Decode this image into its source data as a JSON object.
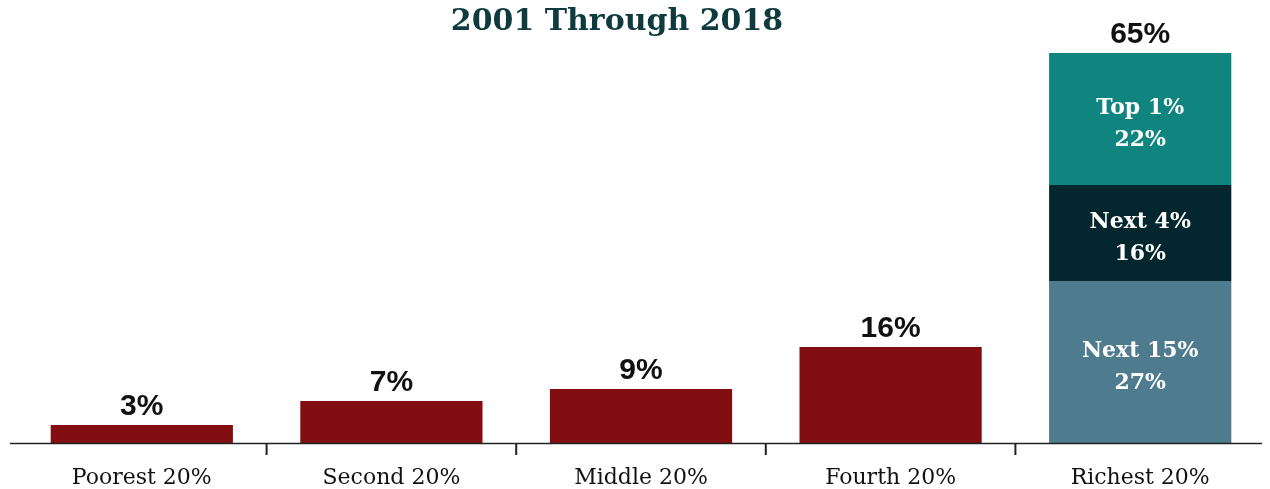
{
  "chart_data": {
    "type": "bar",
    "title": "2001 Through 2018",
    "stacked": true,
    "categories": [
      "Poorest 20%",
      "Second 20%",
      "Middle 20%",
      "Fourth 20%",
      "Richest 20%"
    ],
    "series": [
      {
        "color": "#820e12",
        "values": [
          3,
          7,
          9,
          16,
          null
        ]
      },
      {
        "name": "Next 15%",
        "color": "#4f7b8f",
        "values": [
          null,
          null,
          null,
          null,
          27
        ],
        "value_labels": [
          null,
          null,
          null,
          null,
          "27%"
        ]
      },
      {
        "name": "Next 4%",
        "color": "#04262e",
        "values": [
          null,
          null,
          null,
          null,
          16
        ],
        "value_labels": [
          null,
          null,
          null,
          null,
          "16%"
        ]
      },
      {
        "name": "Top 1%",
        "color": "#108580",
        "values": [
          null,
          null,
          null,
          null,
          22
        ],
        "value_labels": [
          null,
          null,
          null,
          null,
          "22%"
        ]
      }
    ],
    "totals": [
      "3%",
      "7%",
      "9%",
      "16%",
      "65%"
    ]
  }
}
